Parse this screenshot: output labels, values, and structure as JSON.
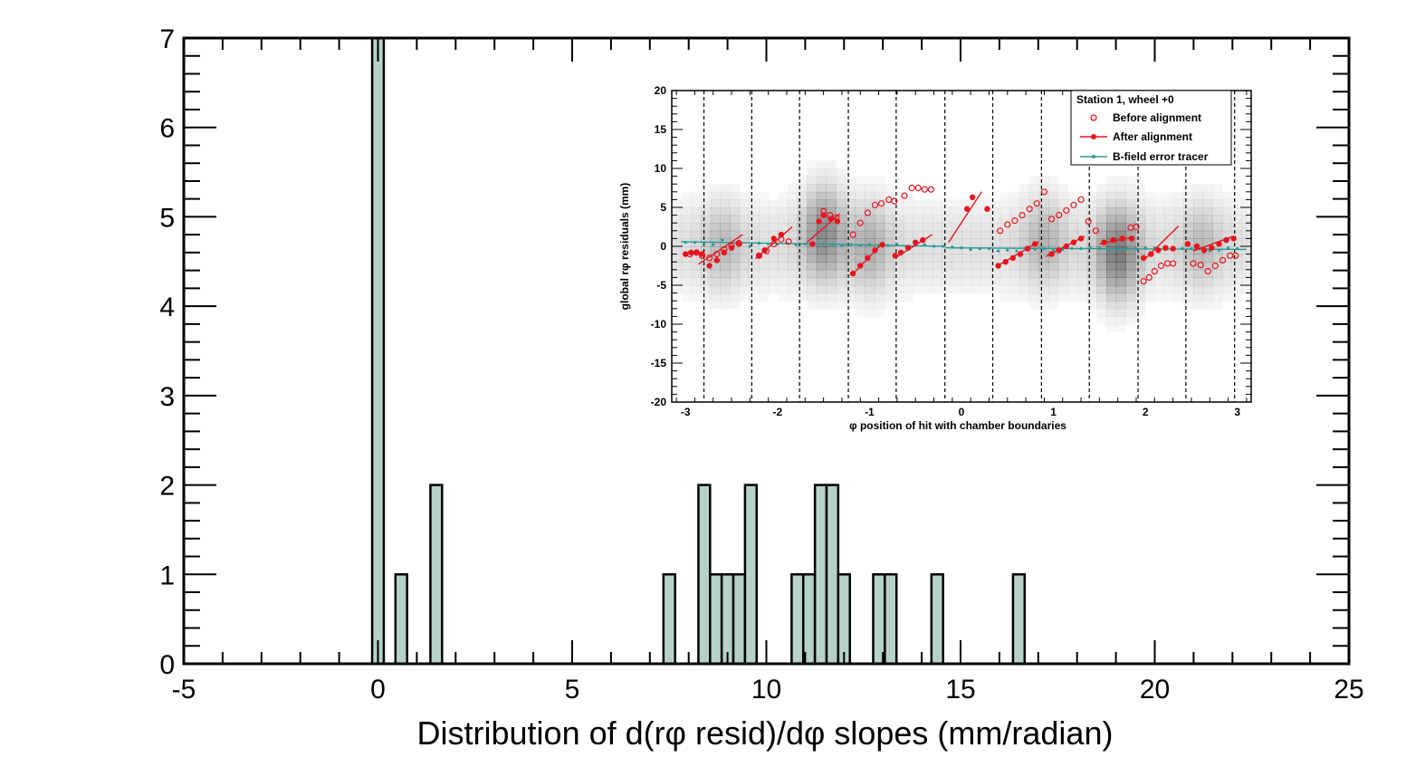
{
  "chart_data": [
    {
      "type": "bar",
      "title": "",
      "xlabel": "Distribution of d(rφ resid)/dφ slopes (mm/radian)",
      "ylabel": "",
      "xlim": [
        -5,
        25
      ],
      "ylim": [
        0,
        7
      ],
      "x_ticks": [
        "-5",
        "0",
        "5",
        "10",
        "15",
        "20",
        "25"
      ],
      "y_ticks": [
        "0",
        "1",
        "2",
        "3",
        "4",
        "5",
        "6",
        "7"
      ],
      "bin_width": 0.3,
      "bins": [
        {
          "x0": -0.15,
          "value": 7
        },
        {
          "x0": 0.45,
          "value": 1
        },
        {
          "x0": 1.35,
          "value": 2
        },
        {
          "x0": 7.35,
          "value": 1
        },
        {
          "x0": 8.25,
          "value": 2
        },
        {
          "x0": 8.55,
          "value": 1
        },
        {
          "x0": 8.85,
          "value": 1
        },
        {
          "x0": 9.15,
          "value": 1
        },
        {
          "x0": 9.45,
          "value": 2
        },
        {
          "x0": 10.65,
          "value": 1
        },
        {
          "x0": 10.95,
          "value": 1
        },
        {
          "x0": 11.25,
          "value": 2
        },
        {
          "x0": 11.55,
          "value": 2
        },
        {
          "x0": 11.85,
          "value": 1
        },
        {
          "x0": 12.75,
          "value": 1
        },
        {
          "x0": 13.05,
          "value": 1
        },
        {
          "x0": 14.25,
          "value": 1
        },
        {
          "x0": 16.35,
          "value": 1
        }
      ],
      "fill_color": "#b5d1c8",
      "edge_color": "#000000",
      "grid": false
    },
    {
      "type": "scatter",
      "title": "",
      "xlabel": "φ position of hit with chamber boundaries",
      "ylabel": "global rφ residuals (mm)",
      "xlim": [
        -3.15,
        3.15
      ],
      "ylim": [
        -20,
        20
      ],
      "x_ticks": [
        "-3",
        "-2",
        "-1",
        "0",
        "1",
        "2",
        "3"
      ],
      "y_ticks": [
        "-20",
        "-15",
        "-10",
        "-5",
        "0",
        "5",
        "10",
        "15",
        "20"
      ],
      "chamber_boundaries": [
        -2.8,
        -2.28,
        -1.76,
        -1.23,
        -0.71,
        -0.18,
        0.34,
        0.87,
        1.39,
        1.92,
        2.44,
        2.97
      ],
      "legend": {
        "title": "Station 1, wheel +0",
        "entries": [
          "Before alignment",
          "After alignment",
          "B-field error tracer"
        ],
        "position": "top-right"
      },
      "colors": {
        "before": "#e8141e",
        "after": "#e8141e",
        "tracer": "#2a9a9a",
        "boundary": "#000000"
      },
      "series": [
        {
          "name": "Before alignment",
          "marker": "open-circle",
          "points": [
            [
              -2.95,
              -1.0
            ],
            [
              -2.88,
              -0.8
            ],
            [
              -2.82,
              -1.2
            ],
            [
              -2.74,
              -1.5
            ],
            [
              -2.66,
              -1.0
            ],
            [
              -2.58,
              -0.4
            ],
            [
              -2.5,
              0.1
            ],
            [
              -2.42,
              0.4
            ],
            [
              -2.2,
              -1.2
            ],
            [
              -2.12,
              -0.6
            ],
            [
              -2.04,
              0.3
            ],
            [
              -1.96,
              0.9
            ],
            [
              -1.88,
              0.6
            ],
            [
              -1.5,
              4.5
            ],
            [
              -1.43,
              4.0
            ],
            [
              -1.36,
              3.7
            ],
            [
              -1.18,
              1.5
            ],
            [
              -1.1,
              3.0
            ],
            [
              -1.02,
              4.3
            ],
            [
              -0.94,
              5.3
            ],
            [
              -0.87,
              5.5
            ],
            [
              -0.79,
              6.0
            ],
            [
              -0.73,
              5.8
            ],
            [
              -0.62,
              6.5
            ],
            [
              -0.54,
              7.5
            ],
            [
              -0.47,
              7.5
            ],
            [
              -0.4,
              7.3
            ],
            [
              -0.33,
              7.3
            ],
            [
              0.42,
              2.0
            ],
            [
              0.5,
              2.8
            ],
            [
              0.58,
              3.3
            ],
            [
              0.66,
              4.0
            ],
            [
              0.74,
              4.8
            ],
            [
              0.82,
              5.5
            ],
            [
              0.9,
              7.0
            ],
            [
              0.98,
              3.5
            ],
            [
              1.06,
              4.0
            ],
            [
              1.14,
              4.6
            ],
            [
              1.22,
              5.3
            ],
            [
              1.3,
              6.0
            ],
            [
              1.38,
              3.2
            ],
            [
              1.46,
              2.0
            ],
            [
              1.84,
              2.4
            ],
            [
              1.9,
              2.5
            ],
            [
              1.98,
              -4.5
            ],
            [
              2.04,
              -4.0
            ],
            [
              2.1,
              -3.2
            ],
            [
              2.17,
              -2.5
            ],
            [
              2.24,
              -2.2
            ],
            [
              2.3,
              -2.2
            ],
            [
              2.52,
              -2.2
            ],
            [
              2.6,
              -2.4
            ],
            [
              2.68,
              -3.2
            ],
            [
              2.76,
              -2.5
            ],
            [
              2.84,
              -1.8
            ],
            [
              2.92,
              -1.2
            ],
            [
              2.98,
              -1.2
            ]
          ]
        },
        {
          "name": "After alignment",
          "marker": "filled-circle",
          "points": [
            [
              -3.0,
              -1.0
            ],
            [
              -2.94,
              -0.8
            ],
            [
              -2.88,
              -0.8
            ],
            [
              -2.82,
              -1.0
            ],
            [
              -2.74,
              -2.5
            ],
            [
              -2.66,
              -1.8
            ],
            [
              -2.58,
              -0.8
            ],
            [
              -2.5,
              -0.2
            ],
            [
              -2.42,
              0.3
            ],
            [
              -2.2,
              -1.2
            ],
            [
              -2.14,
              -0.5
            ],
            [
              -2.04,
              1.0
            ],
            [
              -1.96,
              1.5
            ],
            [
              -1.62,
              0.3
            ],
            [
              -1.55,
              3.2
            ],
            [
              -1.5,
              4.0
            ],
            [
              -1.42,
              3.5
            ],
            [
              -1.35,
              3.2
            ],
            [
              -1.18,
              -3.5
            ],
            [
              -1.1,
              -2.5
            ],
            [
              -1.02,
              -1.5
            ],
            [
              -0.94,
              -0.5
            ],
            [
              -0.86,
              0.2
            ],
            [
              -0.72,
              -1.2
            ],
            [
              -0.66,
              -0.8
            ],
            [
              -0.58,
              -0.2
            ],
            [
              -0.5,
              0.5
            ],
            [
              -0.42,
              0.8
            ],
            [
              0.06,
              4.8
            ],
            [
              0.12,
              6.3
            ],
            [
              0.28,
              4.8
            ],
            [
              0.4,
              -2.5
            ],
            [
              0.48,
              -2.0
            ],
            [
              0.56,
              -1.5
            ],
            [
              0.64,
              -1.0
            ],
            [
              0.72,
              -0.3
            ],
            [
              0.8,
              0.3
            ],
            [
              0.98,
              -1.0
            ],
            [
              1.06,
              -0.5
            ],
            [
              1.14,
              0.0
            ],
            [
              1.22,
              0.5
            ],
            [
              1.3,
              1.0
            ],
            [
              1.55,
              0.5
            ],
            [
              1.65,
              0.8
            ],
            [
              1.75,
              1.0
            ],
            [
              1.85,
              1.0
            ],
            [
              1.98,
              -1.5
            ],
            [
              2.06,
              -1.0
            ],
            [
              2.14,
              -0.5
            ],
            [
              2.22,
              -0.2
            ],
            [
              2.3,
              -0.3
            ],
            [
              2.46,
              0.3
            ],
            [
              2.56,
              0.0
            ],
            [
              2.64,
              -0.5
            ],
            [
              2.72,
              -0.2
            ],
            [
              2.8,
              0.3
            ],
            [
              2.88,
              0.8
            ],
            [
              2.96,
              1.0
            ]
          ]
        },
        {
          "name": "B-field error tracer",
          "marker": "small-dot-line",
          "points": [
            [
              -3.0,
              0.5
            ],
            [
              -2.9,
              0.5
            ],
            [
              -2.8,
              0.4
            ],
            [
              -2.7,
              0.2
            ],
            [
              -2.6,
              0.8
            ],
            [
              -2.5,
              0.4
            ],
            [
              -2.4,
              0.2
            ],
            [
              -2.3,
              0.0
            ],
            [
              -2.2,
              0.4
            ],
            [
              -2.1,
              0.3
            ],
            [
              -2.0,
              0.3
            ],
            [
              -1.9,
              0.4
            ],
            [
              -1.8,
              0.2
            ],
            [
              -1.7,
              0.3
            ],
            [
              -1.6,
              0.3
            ],
            [
              -1.5,
              0.3
            ],
            [
              -1.4,
              0.2
            ],
            [
              -1.3,
              0.1
            ],
            [
              -1.2,
              0.2
            ],
            [
              -1.1,
              0.1
            ],
            [
              -1.0,
              0.2
            ],
            [
              -0.9,
              0.1
            ],
            [
              -0.8,
              0.1
            ],
            [
              -0.7,
              0.2
            ],
            [
              -0.6,
              0.0
            ],
            [
              -0.5,
              0.1
            ],
            [
              -0.4,
              0.2
            ],
            [
              -0.3,
              0.0
            ],
            [
              -0.2,
              0.0
            ],
            [
              -0.1,
              -0.1
            ],
            [
              0.0,
              -0.2
            ],
            [
              0.1,
              -0.4
            ],
            [
              0.2,
              -0.3
            ],
            [
              0.3,
              -0.3
            ],
            [
              0.4,
              -0.6
            ],
            [
              0.5,
              -0.5
            ],
            [
              0.6,
              -0.6
            ],
            [
              0.7,
              -0.2
            ],
            [
              0.8,
              -0.4
            ],
            [
              0.9,
              -0.3
            ],
            [
              1.0,
              -0.5
            ],
            [
              1.1,
              -0.4
            ],
            [
              1.2,
              -0.3
            ],
            [
              1.3,
              -0.3
            ],
            [
              1.4,
              -0.2
            ],
            [
              1.5,
              -0.3
            ],
            [
              1.6,
              -0.4
            ],
            [
              1.7,
              -0.2
            ],
            [
              1.8,
              -0.3
            ],
            [
              1.9,
              -0.3
            ],
            [
              2.0,
              -0.2
            ],
            [
              2.1,
              -0.2
            ],
            [
              2.2,
              -0.3
            ],
            [
              2.3,
              -0.2
            ],
            [
              2.4,
              -0.3
            ],
            [
              2.5,
              -0.3
            ],
            [
              2.6,
              -0.3
            ],
            [
              2.7,
              -0.6
            ],
            [
              2.8,
              -0.5
            ],
            [
              2.9,
              -0.2
            ],
            [
              3.0,
              -0.3
            ]
          ]
        }
      ],
      "fit_lines": [
        [
          [
            -2.86,
            -2.3
          ],
          [
            -2.38,
            1.5
          ]
        ],
        [
          [
            -2.24,
            -1.6
          ],
          [
            -1.84,
            2.5
          ]
        ],
        [
          [
            -1.68,
            0.5
          ],
          [
            -1.32,
            4.2
          ]
        ],
        [
          [
            -1.2,
            -3.8
          ],
          [
            -0.86,
            0.4
          ]
        ],
        [
          [
            -0.72,
            -1.5
          ],
          [
            -0.32,
            1.5
          ]
        ],
        [
          [
            -0.14,
            0.5
          ],
          [
            0.22,
            7.0
          ]
        ],
        [
          [
            0.38,
            -2.6
          ],
          [
            0.84,
            0.6
          ]
        ],
        [
          [
            0.92,
            -1.3
          ],
          [
            1.34,
            1.3
          ]
        ],
        [
          [
            1.5,
            0.3
          ],
          [
            1.88,
            1.2
          ]
        ],
        [
          [
            1.98,
            -1.8
          ],
          [
            2.36,
            2.6
          ]
        ],
        [
          [
            2.52,
            -0.6
          ],
          [
            2.96,
            1.3
          ]
        ]
      ],
      "tracer_lines": [
        [
          [
            -3.05,
            0.6
          ],
          [
            -0.18,
            0.0
          ]
        ],
        [
          [
            -0.18,
            -0.2
          ],
          [
            3.1,
            -0.4
          ]
        ]
      ]
    }
  ]
}
